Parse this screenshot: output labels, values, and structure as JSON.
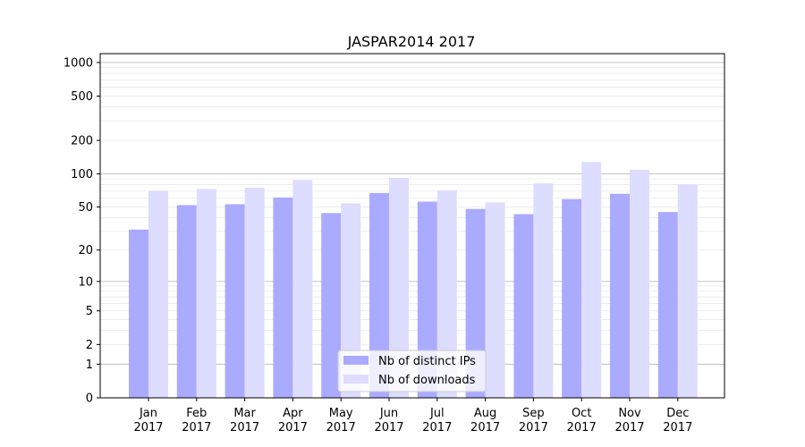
{
  "chart_data": {
    "type": "bar",
    "title": "JASPAR2014 2017",
    "xlabel": "",
    "ylabel": "",
    "scale": "symlog",
    "ylim": [
      0,
      1200
    ],
    "yticks": [
      0,
      1,
      2,
      5,
      10,
      20,
      50,
      100,
      200,
      500,
      1000
    ],
    "ytick_labels": [
      "0",
      "1",
      "2",
      "5",
      "10",
      "20",
      "50",
      "100",
      "200",
      "500",
      "1000"
    ],
    "categories": [
      [
        "Jan",
        "2017"
      ],
      [
        "Feb",
        "2017"
      ],
      [
        "Mar",
        "2017"
      ],
      [
        "Apr",
        "2017"
      ],
      [
        "May",
        "2017"
      ],
      [
        "Jun",
        "2017"
      ],
      [
        "Jul",
        "2017"
      ],
      [
        "Aug",
        "2017"
      ],
      [
        "Sep",
        "2017"
      ],
      [
        "Oct",
        "2017"
      ],
      [
        "Nov",
        "2017"
      ],
      [
        "Dec",
        "2017"
      ]
    ],
    "series": [
      {
        "name": "Nb of distinct IPs",
        "color": "#aaaaff",
        "values": [
          31,
          52,
          53,
          61,
          44,
          67,
          56,
          48,
          43,
          59,
          66,
          45
        ]
      },
      {
        "name": "Nb of downloads",
        "color": "#ddddff",
        "values": [
          70,
          73,
          75,
          88,
          54,
          92,
          71,
          55,
          82,
          128,
          109,
          80
        ]
      }
    ],
    "grid": true,
    "legend": "lower-center"
  }
}
